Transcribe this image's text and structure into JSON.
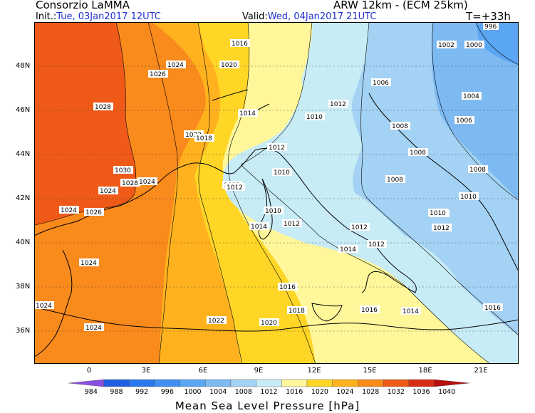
{
  "header": {
    "org": "Consorzio LaMMA",
    "model": "ARW 12km - (ECM 25km)",
    "init_label": "Init.:",
    "init_value": "Tue, 03Jan2017 12UTC",
    "valid_label": "Valid:",
    "valid_value": "Wed, 04Jan2017 21UTC",
    "lead": "T=+33h"
  },
  "axes": {
    "lat_labels": [
      "48N",
      "46N",
      "44N",
      "42N",
      "40N",
      "38N",
      "36N"
    ],
    "lon_labels": [
      "0",
      "3E",
      "6E",
      "9E",
      "12E",
      "15E",
      "18E",
      "21E"
    ]
  },
  "isobars": [
    {
      "text": "1016",
      "v": 1016
    },
    {
      "text": "1020",
      "v": 1020
    },
    {
      "text": "1024",
      "v": 1024
    },
    {
      "text": "1026",
      "v": 1026
    },
    {
      "text": "1028",
      "v": 1028
    },
    {
      "text": "1014",
      "v": 1014
    },
    {
      "text": "1022",
      "v": 1022
    },
    {
      "text": "1018",
      "v": 1018
    },
    {
      "text": "1012",
      "v": 1012
    },
    {
      "text": "1010",
      "v": 1010
    },
    {
      "text": "1030",
      "v": 1030
    },
    {
      "text": "1028",
      "v": 1028
    },
    {
      "text": "1024",
      "v": 1024
    },
    {
      "text": "1024",
      "v": 1024
    },
    {
      "text": "1026",
      "v": 1026
    },
    {
      "text": "1024",
      "v": 1024
    },
    {
      "text": "1024",
      "v": 1024
    },
    {
      "text": "1024",
      "v": 1024
    },
    {
      "text": "1024",
      "v": 1024
    },
    {
      "text": "1022",
      "v": 1022
    },
    {
      "text": "1020",
      "v": 1020
    },
    {
      "text": "1016",
      "v": 1016
    },
    {
      "text": "1018",
      "v": 1018
    },
    {
      "text": "1016",
      "v": 1016
    },
    {
      "text": "1014",
      "v": 1014
    },
    {
      "text": "1014",
      "v": 1014
    },
    {
      "text": "1012",
      "v": 1012
    },
    {
      "text": "1012",
      "v": 1012
    },
    {
      "text": "1010",
      "v": 1010
    },
    {
      "text": "1010",
      "v": 1010
    },
    {
      "text": "1012",
      "v": 1012
    },
    {
      "text": "1012",
      "v": 1012
    },
    {
      "text": "1010",
      "v": 1010
    },
    {
      "text": "1008",
      "v": 1008
    },
    {
      "text": "1006",
      "v": 1006
    },
    {
      "text": "1002",
      "v": 1002
    },
    {
      "text": "1000",
      "v": 1000
    },
    {
      "text": "1004",
      "v": 1004
    },
    {
      "text": "1006",
      "v": 1006
    },
    {
      "text": "1008",
      "v": 1008
    },
    {
      "text": "1008",
      "v": 1008
    },
    {
      "text": "1008",
      "v": 1008
    },
    {
      "text": "1010",
      "v": 1010
    },
    {
      "text": "1010",
      "v": 1010
    },
    {
      "text": "1012",
      "v": 1012
    },
    {
      "text": "1012",
      "v": 1012
    },
    {
      "text": "1014",
      "v": 1014
    },
    {
      "text": "1016",
      "v": 1016
    },
    {
      "text": "1012",
      "v": 1012
    },
    {
      "text": "996",
      "v": 996
    }
  ],
  "colorbar": {
    "bins": [
      {
        "label": "984",
        "color": "#8a4fe0"
      },
      {
        "label": "988",
        "color": "#1f5fe0"
      },
      {
        "label": "992",
        "color": "#2a78ee"
      },
      {
        "label": "996",
        "color": "#3f90f2"
      },
      {
        "label": "1000",
        "color": "#5aa6f2"
      },
      {
        "label": "1004",
        "color": "#7dbaf2"
      },
      {
        "label": "1008",
        "color": "#a4d2f4"
      },
      {
        "label": "1012",
        "color": "#c8ecf6"
      },
      {
        "label": "1016",
        "color": "#fff79a"
      },
      {
        "label": "1020",
        "color": "#ffd626"
      },
      {
        "label": "1024",
        "color": "#ffb21e"
      },
      {
        "label": "1028",
        "color": "#f98a1c"
      },
      {
        "label": "1032",
        "color": "#ef5a18"
      },
      {
        "label": "1036",
        "color": "#d82c14"
      },
      {
        "label": "1040",
        "color": "#b80d0d"
      }
    ],
    "title": "Mean Sea Level Pressure [hPa]"
  }
}
